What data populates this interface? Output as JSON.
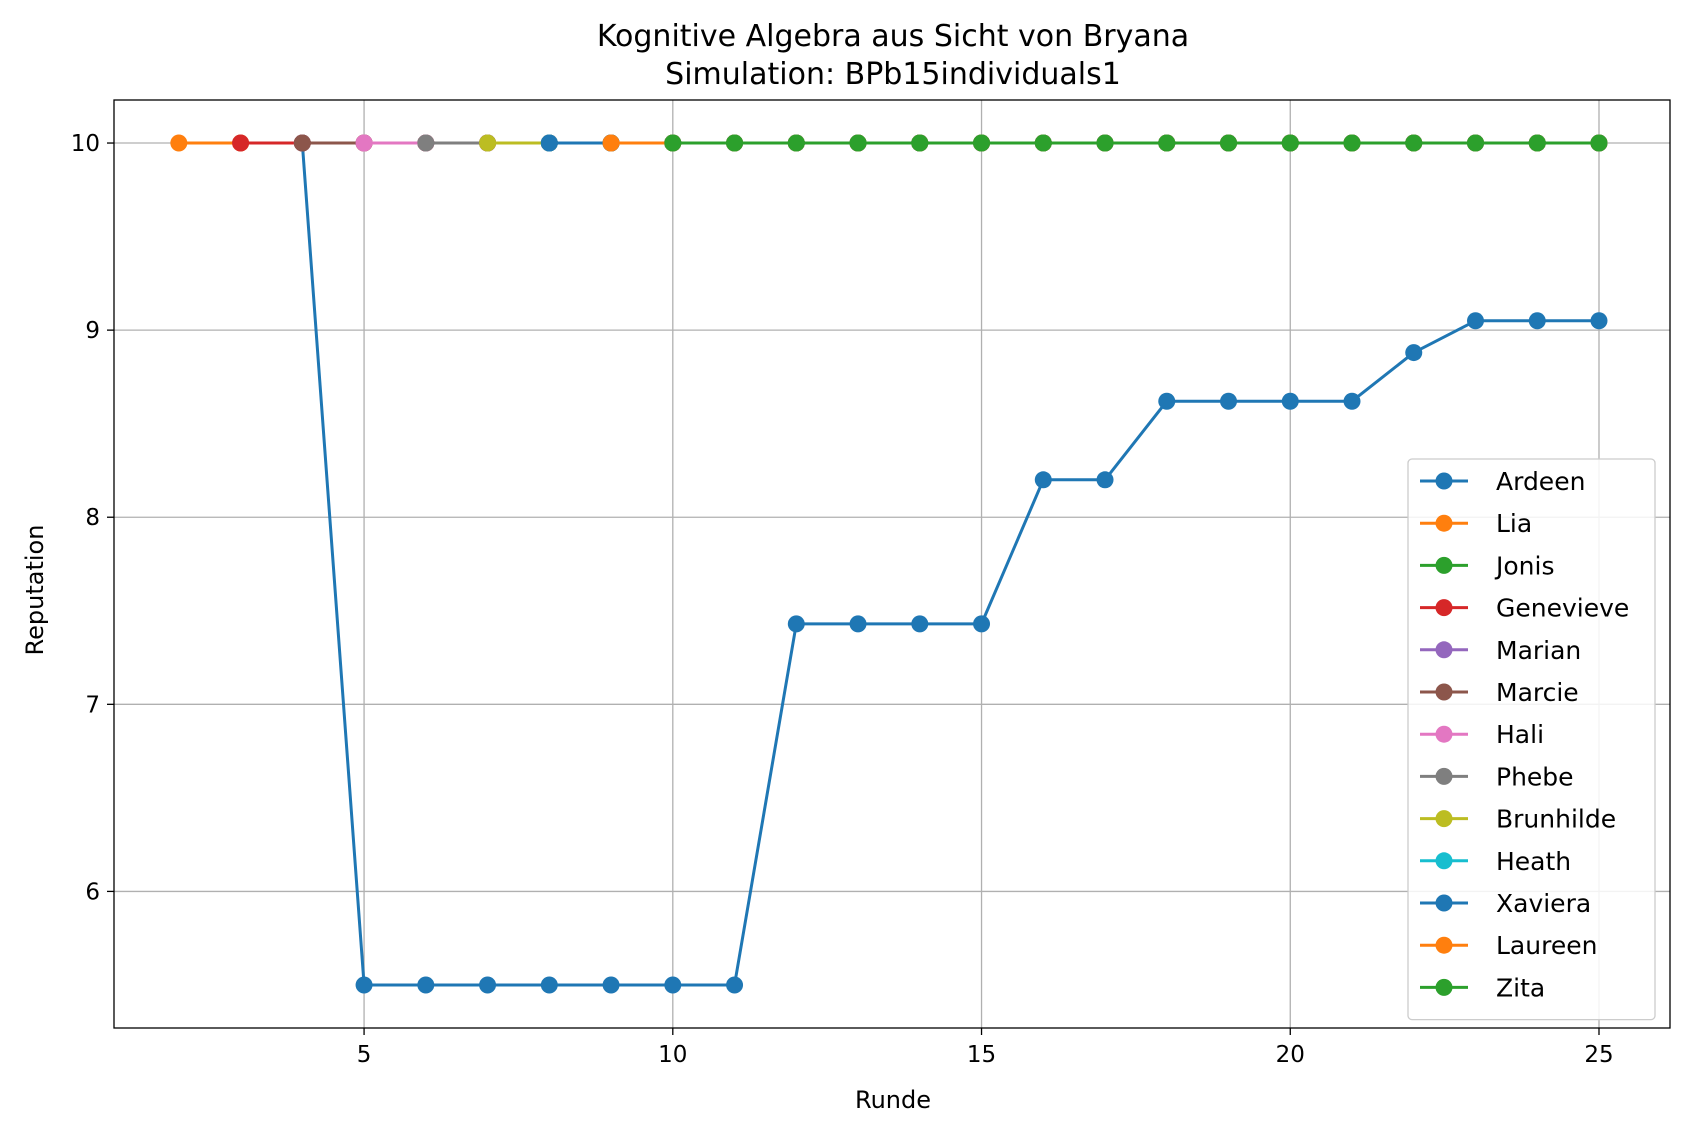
{
  "chart_data": {
    "type": "line",
    "title": "Kognitive Algebra aus Sicht von Bryana",
    "subtitle": "Simulation: BPb15individuals1",
    "xlabel": "Runde",
    "ylabel": "Reputation",
    "xlim": [
      0.95,
      26.15
    ],
    "ylim": [
      5.27,
      10.23
    ],
    "xticks": [
      5,
      10,
      15,
      20,
      25
    ],
    "yticks": [
      6,
      7,
      8,
      9,
      10
    ],
    "grid": true,
    "legend_position": "lower right",
    "markers": true,
    "series": [
      {
        "name": "Ardeen",
        "color": "#1f77b4",
        "x": [
          4,
          5,
          6,
          7,
          8,
          9,
          10,
          11,
          12,
          13,
          14,
          15,
          16,
          17,
          18,
          19,
          20,
          21,
          22,
          23,
          24,
          25
        ],
        "values": [
          10,
          5.5,
          5.5,
          5.5,
          5.5,
          5.5,
          5.5,
          5.5,
          7.43,
          7.43,
          7.43,
          7.43,
          8.2,
          8.2,
          8.62,
          8.62,
          8.62,
          8.62,
          8.88,
          9.05,
          9.05,
          9.05
        ]
      },
      {
        "name": "Lia",
        "color": "#ff7f0e",
        "x": [
          2,
          3,
          4,
          5,
          6,
          7,
          8,
          9,
          10,
          11,
          12,
          13,
          14,
          15,
          16,
          17,
          18,
          19,
          20,
          21,
          22,
          23,
          24,
          25
        ],
        "values": [
          10,
          10,
          10,
          10,
          10,
          10,
          10,
          10,
          10,
          10,
          10,
          10,
          10,
          10,
          10,
          10,
          10,
          10,
          10,
          10,
          10,
          10,
          10,
          10
        ]
      },
      {
        "name": "Jonis",
        "color": "#2ca02c",
        "x": [
          10,
          11,
          12,
          13,
          14,
          15,
          16,
          17,
          18,
          19,
          20,
          21,
          22,
          23,
          24,
          25
        ],
        "values": [
          10,
          10,
          10,
          10,
          10,
          10,
          10,
          10,
          10,
          10,
          10,
          10,
          10,
          10,
          10,
          10
        ]
      },
      {
        "name": "Genevieve",
        "color": "#d62728",
        "x": [
          3,
          4,
          5,
          6,
          7,
          8,
          9,
          10,
          11,
          12,
          13,
          14,
          15,
          16,
          17,
          18,
          19,
          20,
          21,
          22,
          23,
          24,
          25
        ],
        "values": [
          10,
          10,
          10,
          10,
          10,
          10,
          10,
          10,
          10,
          10,
          10,
          10,
          10,
          10,
          10,
          10,
          10,
          10,
          10,
          10,
          10,
          10,
          10
        ]
      },
      {
        "name": "Marian",
        "color": "#9467bd",
        "x": [
          4,
          5,
          6,
          7,
          8,
          9,
          10,
          11,
          12,
          13,
          14,
          15,
          16,
          17,
          18,
          19,
          20,
          21,
          22,
          23,
          24,
          25
        ],
        "values": [
          10,
          10,
          10,
          10,
          10,
          10,
          10,
          10,
          10,
          10,
          10,
          10,
          10,
          10,
          10,
          10,
          10,
          10,
          10,
          10,
          10,
          10
        ]
      },
      {
        "name": "Marcie",
        "color": "#8c564b",
        "x": [
          4,
          5,
          6,
          7,
          8,
          9,
          10,
          11,
          12,
          13,
          14,
          15,
          16,
          17,
          18,
          19,
          20,
          21,
          22,
          23,
          24,
          25
        ],
        "values": [
          10,
          10,
          10,
          10,
          10,
          10,
          10,
          10,
          10,
          10,
          10,
          10,
          10,
          10,
          10,
          10,
          10,
          10,
          10,
          10,
          10,
          10
        ]
      },
      {
        "name": "Hali",
        "color": "#e377c2",
        "x": [
          5,
          6,
          7,
          8,
          9,
          10,
          11,
          12,
          13,
          14,
          15,
          16,
          17,
          18,
          19,
          20,
          21,
          22,
          23,
          24,
          25
        ],
        "values": [
          10,
          10,
          10,
          10,
          10,
          10,
          10,
          10,
          10,
          10,
          10,
          10,
          10,
          10,
          10,
          10,
          10,
          10,
          10,
          10,
          10
        ]
      },
      {
        "name": "Phebe",
        "color": "#7f7f7f",
        "x": [
          6,
          7,
          8,
          9,
          10,
          11,
          12,
          13,
          14,
          15,
          16,
          17,
          18,
          19,
          20,
          21,
          22,
          23,
          24,
          25
        ],
        "values": [
          10,
          10,
          10,
          10,
          10,
          10,
          10,
          10,
          10,
          10,
          10,
          10,
          10,
          10,
          10,
          10,
          10,
          10,
          10,
          10
        ]
      },
      {
        "name": "Brunhilde",
        "color": "#bcbd22",
        "x": [
          7,
          8,
          9,
          10,
          11,
          12,
          13,
          14,
          15,
          16,
          17,
          18,
          19,
          20,
          21,
          22,
          23,
          24,
          25
        ],
        "values": [
          10,
          10,
          10,
          10,
          10,
          10,
          10,
          10,
          10,
          10,
          10,
          10,
          10,
          10,
          10,
          10,
          10,
          10,
          10
        ]
      },
      {
        "name": "Heath",
        "color": "#17becf",
        "x": [
          8,
          9,
          10,
          11,
          12,
          13,
          14,
          15,
          16,
          17,
          18,
          19,
          20,
          21,
          22,
          23,
          24,
          25
        ],
        "values": [
          10,
          10,
          10,
          10,
          10,
          10,
          10,
          10,
          10,
          10,
          10,
          10,
          10,
          10,
          10,
          10,
          10,
          10
        ]
      },
      {
        "name": "Xaviera",
        "color": "#1f77b4",
        "x": [
          8,
          9,
          10,
          11,
          12,
          13,
          14,
          15,
          16,
          17,
          18,
          19,
          20,
          21,
          22,
          23,
          24,
          25
        ],
        "values": [
          10,
          10,
          10,
          10,
          10,
          10,
          10,
          10,
          10,
          10,
          10,
          10,
          10,
          10,
          10,
          10,
          10,
          10
        ]
      },
      {
        "name": "Laureen",
        "color": "#ff7f0e",
        "x": [
          9,
          10,
          11,
          12,
          13,
          14,
          15,
          16,
          17,
          18,
          19,
          20,
          21,
          22,
          23,
          24,
          25
        ],
        "values": [
          10,
          10,
          10,
          10,
          10,
          10,
          10,
          10,
          10,
          10,
          10,
          10,
          10,
          10,
          10,
          10,
          10
        ]
      },
      {
        "name": "Zita",
        "color": "#2ca02c",
        "x": [
          10,
          11,
          12,
          13,
          14,
          15,
          16,
          17,
          18,
          19,
          20,
          21,
          22,
          23,
          24,
          25
        ],
        "values": [
          10,
          10,
          10,
          10,
          10,
          10,
          10,
          10,
          10,
          10,
          10,
          10,
          10,
          10,
          10,
          10
        ]
      }
    ]
  }
}
